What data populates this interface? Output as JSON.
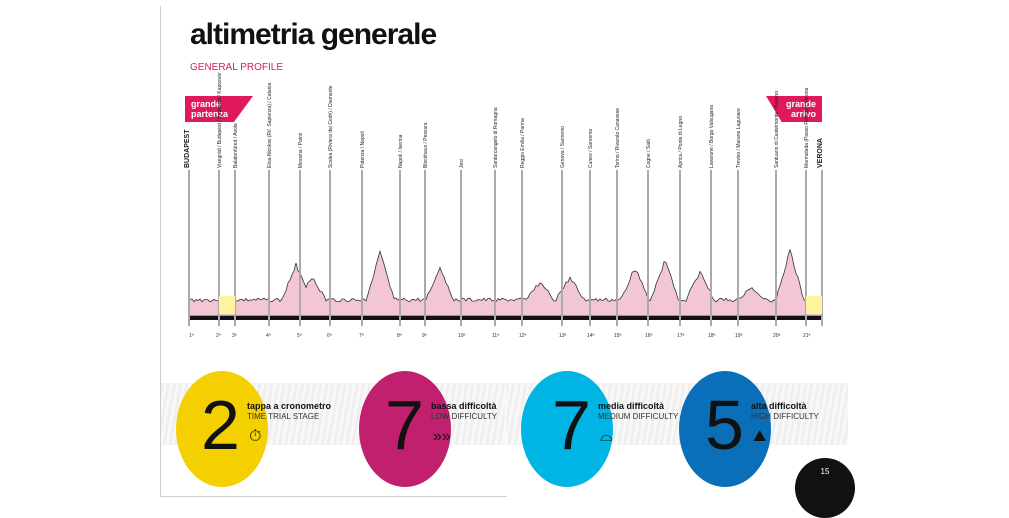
{
  "title": "altimetria generale",
  "subtitle": "GENERAL PROFILE",
  "start_flag": "grande partenza",
  "finish_flag": "grande arrivo",
  "start_city": "BUDAPEST",
  "finish_city": "VERONA",
  "stage_towns": [
    "Visegrád / Budapest / Budapest / Kaposvár",
    "Balatonfüred / Avola",
    "Etna-Nicolosi (Rif. Sapienza) / Catania",
    "Messina / Palmi",
    "Scalea (Riviera dei Cedri) / Diamante",
    "Potenza / Napoli",
    "Napoli / Isernia",
    "Blockhaus / Pescara",
    "Jesi",
    "Santarcangelo di Romagna",
    "Reggio Emilia / Parma",
    "Genova / Sanremo",
    "Cuneo / Sanremo",
    "Torino / Rivarolo Canavese",
    "Cogne / Salò",
    "Aprica / Ponte di Legno",
    "Lavarone / Borgo Valsugana",
    "Treviso / Marano Lagunare",
    "Santuario di Castelmonte / Belluno",
    "Marmolada (Passo Fedaia) / Verona"
  ],
  "stage_numbers": [
    "1ª",
    "2ª",
    "3ª",
    "4ª",
    "5ª",
    "6ª",
    "7ª",
    "8ª",
    "9ª",
    "10ª",
    "11ª",
    "12ª",
    "13ª",
    "14ª",
    "15ª",
    "16ª",
    "17ª",
    "18ª",
    "19ª",
    "20ª",
    "21ª"
  ],
  "stats": [
    {
      "count": "2",
      "label": "tappa a cronometro",
      "label_en": "TIME TRIAL STAGE",
      "icon": "stopwatch-icon",
      "color": "#f5d000",
      "glyph": "⏱"
    },
    {
      "count": "7",
      "label": "bassa difficoltà",
      "label_en": "LOW DIFFICULTY",
      "icon": "chevrons-icon",
      "color": "#c0206e",
      "glyph": "»»"
    },
    {
      "count": "7",
      "label": "media difficoltà",
      "label_en": "MEDIUM DIFFICULTY",
      "icon": "hill-icon",
      "color": "#00b4e4",
      "glyph": "⌓"
    },
    {
      "count": "5",
      "label": "alta difficoltà",
      "label_en": "HIGH DIFFICULTY",
      "icon": "mountain-icon",
      "color": "#0a6fb8",
      "glyph": "⛰"
    }
  ],
  "page_number": "15"
}
